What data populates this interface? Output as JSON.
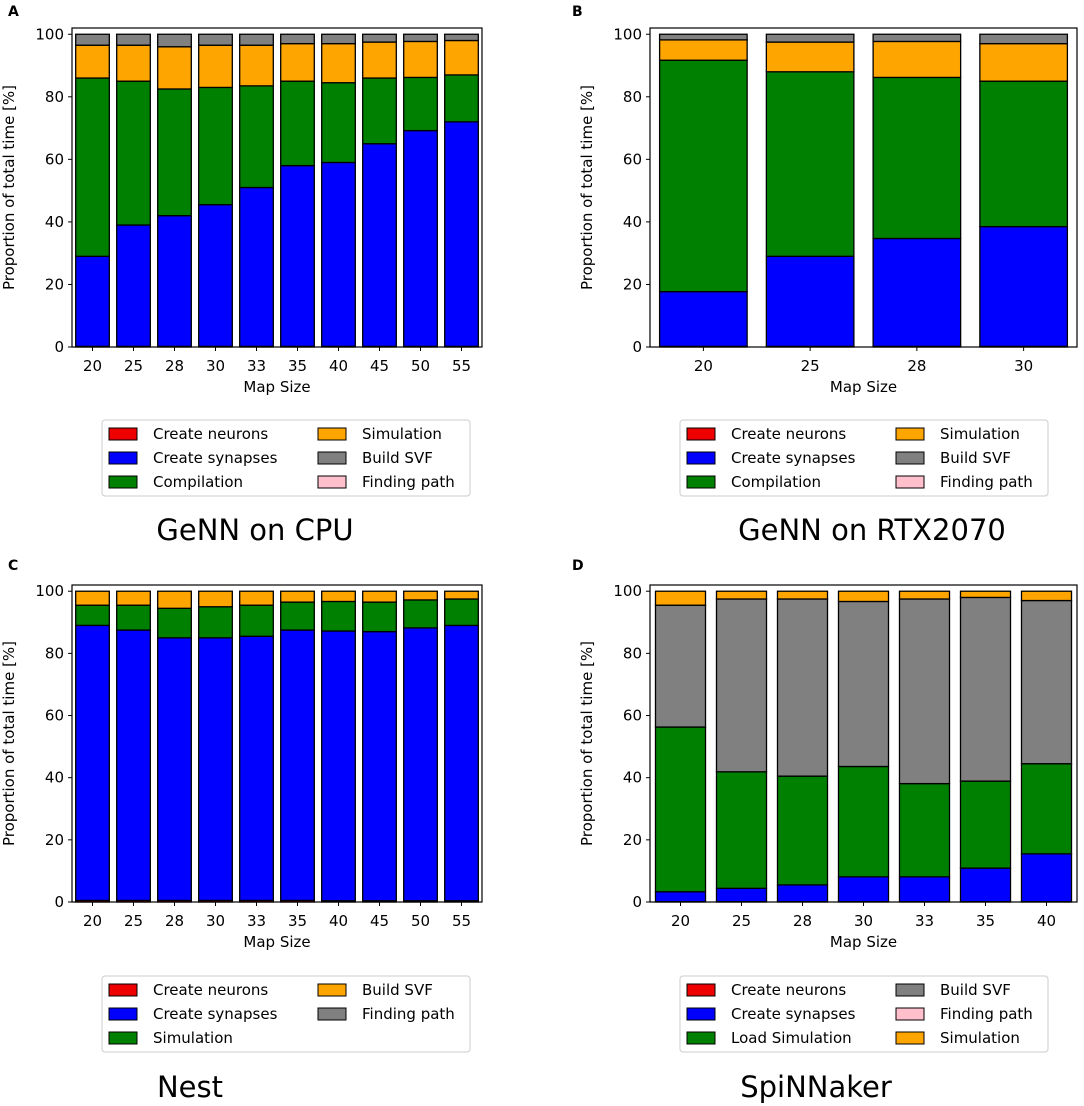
{
  "chart_data": [
    {
      "panel": "A",
      "type": "bar",
      "stacked": true,
      "caption": "GeNN on CPU",
      "xlabel": "Map Size",
      "ylabel": "Proportion of total time [%]",
      "ylim": [
        0,
        102
      ],
      "yticks": [
        "0",
        "20",
        "40",
        "60",
        "80",
        "100"
      ],
      "categories": [
        "20",
        "25",
        "28",
        "30",
        "33",
        "35",
        "40",
        "45",
        "50",
        "55"
      ],
      "series": [
        {
          "name": "Create neurons",
          "color": "#ee0000",
          "values": [
            0.2,
            0.2,
            0.2,
            0.2,
            0.2,
            0.2,
            0.2,
            0.2,
            0.2,
            0.2
          ]
        },
        {
          "name": "Create synapses",
          "color": "#0000ff",
          "values": [
            28.8,
            38.8,
            41.8,
            45.3,
            50.8,
            57.8,
            58.8,
            64.8,
            69.0,
            71.8
          ]
        },
        {
          "name": "Compilation",
          "color": "#008000",
          "values": [
            57.0,
            46.0,
            40.5,
            37.5,
            32.5,
            27.0,
            25.5,
            21.0,
            17.0,
            15.0
          ]
        },
        {
          "name": "Simulation",
          "color": "#ffa500",
          "values": [
            10.5,
            11.5,
            13.5,
            13.5,
            13.0,
            12.0,
            12.5,
            11.5,
            11.5,
            11.0
          ]
        },
        {
          "name": "Build SVF",
          "color": "#808080",
          "values": [
            3.5,
            3.5,
            4.0,
            3.5,
            3.5,
            3.0,
            3.0,
            2.5,
            2.3,
            2.0
          ]
        },
        {
          "name": "Finding path",
          "color": "#ffc0cb",
          "values": [
            0,
            0,
            0,
            0,
            0,
            0,
            0,
            0,
            0,
            0
          ]
        }
      ],
      "legend_order": [
        "Create neurons",
        "Create synapses",
        "Compilation",
        "Simulation",
        "Build SVF",
        "Finding path"
      ],
      "legend_location": "below"
    },
    {
      "panel": "B",
      "type": "bar",
      "stacked": true,
      "caption": "GeNN on RTX2070",
      "xlabel": "Map Size",
      "ylabel": "Proportion of total time [%]",
      "ylim": [
        0,
        102
      ],
      "yticks": [
        "0",
        "20",
        "40",
        "60",
        "80",
        "100"
      ],
      "categories": [
        "20",
        "25",
        "28",
        "30"
      ],
      "series": [
        {
          "name": "Create neurons",
          "color": "#ee0000",
          "values": [
            0.2,
            0.2,
            0.2,
            0.2
          ]
        },
        {
          "name": "Create synapses",
          "color": "#0000ff",
          "values": [
            17.5,
            28.8,
            34.5,
            38.3
          ]
        },
        {
          "name": "Compilation",
          "color": "#008000",
          "values": [
            74.0,
            59.0,
            51.5,
            46.5
          ]
        },
        {
          "name": "Simulation",
          "color": "#ffa500",
          "values": [
            6.5,
            9.5,
            11.5,
            12.0
          ]
        },
        {
          "name": "Build SVF",
          "color": "#808080",
          "values": [
            1.8,
            2.5,
            2.3,
            3.0
          ]
        },
        {
          "name": "Finding path",
          "color": "#ffc0cb",
          "values": [
            0,
            0,
            0,
            0
          ]
        }
      ],
      "legend_order": [
        "Create neurons",
        "Create synapses",
        "Compilation",
        "Simulation",
        "Build SVF",
        "Finding path"
      ],
      "legend_location": "below"
    },
    {
      "panel": "C",
      "type": "bar",
      "stacked": true,
      "caption": "Nest",
      "xlabel": "Map Size",
      "ylabel": "Proportion of total time [%]",
      "ylim": [
        0,
        102
      ],
      "yticks": [
        "0",
        "20",
        "40",
        "60",
        "80",
        "100"
      ],
      "categories": [
        "20",
        "25",
        "28",
        "30",
        "33",
        "35",
        "40",
        "45",
        "50",
        "55"
      ],
      "series": [
        {
          "name": "Create neurons",
          "color": "#ee0000",
          "values": [
            0.5,
            0.5,
            0.5,
            0.5,
            0.5,
            0.5,
            0.4,
            0.4,
            0.4,
            0.4
          ]
        },
        {
          "name": "Create synapses",
          "color": "#0000ff",
          "values": [
            88.5,
            87.0,
            84.5,
            84.5,
            85.0,
            87.0,
            86.8,
            86.6,
            87.8,
            88.6
          ]
        },
        {
          "name": "Simulation",
          "color": "#008000",
          "values": [
            6.5,
            8.0,
            9.5,
            10.0,
            10.0,
            9.0,
            9.5,
            9.5,
            9.0,
            8.5
          ]
        },
        {
          "name": "Build SVF",
          "color": "#ffa500",
          "values": [
            4.5,
            4.5,
            5.5,
            5.0,
            4.5,
            3.5,
            3.3,
            3.5,
            2.8,
            2.5
          ]
        },
        {
          "name": "Finding path",
          "color": "#808080",
          "values": [
            0,
            0,
            0,
            0,
            0,
            0,
            0,
            0,
            0,
            0
          ]
        }
      ],
      "legend_order": [
        "Create neurons",
        "Create synapses",
        "Simulation",
        "Build SVF",
        "Finding path"
      ],
      "legend_location": "below"
    },
    {
      "panel": "D",
      "type": "bar",
      "stacked": true,
      "caption": "SpiNNaker",
      "xlabel": "Map Size",
      "ylabel": "Proportion of total time [%]",
      "ylim": [
        0,
        102
      ],
      "yticks": [
        "0",
        "20",
        "40",
        "60",
        "80",
        "100"
      ],
      "categories": [
        "20",
        "25",
        "28",
        "30",
        "33",
        "35",
        "40"
      ],
      "series": [
        {
          "name": "Create neurons",
          "color": "#ee0000",
          "values": [
            0.1,
            0.1,
            0.1,
            0.1,
            0.1,
            0.1,
            0.1
          ]
        },
        {
          "name": "Create synapses",
          "color": "#0000ff",
          "values": [
            3.2,
            4.3,
            5.4,
            8.0,
            8.0,
            10.8,
            15.4
          ]
        },
        {
          "name": "Load Simulation",
          "color": "#008000",
          "values": [
            53.0,
            37.5,
            35.0,
            35.5,
            30.0,
            28.0,
            29.0
          ]
        },
        {
          "name": "Build SVF",
          "color": "#808080",
          "values": [
            39.2,
            55.6,
            57.0,
            53.1,
            59.4,
            59.1,
            52.5
          ]
        },
        {
          "name": "Finding path",
          "color": "#ffc0cb",
          "values": [
            0,
            0,
            0,
            0,
            0,
            0,
            0
          ]
        },
        {
          "name": "Simulation",
          "color": "#ffa500",
          "values": [
            4.5,
            2.5,
            2.5,
            3.3,
            2.5,
            2.0,
            3.0
          ]
        }
      ],
      "legend_order": [
        "Create neurons",
        "Create synapses",
        "Load Simulation",
        "Build SVF",
        "Finding path",
        "Simulation"
      ],
      "legend_location": "below"
    }
  ]
}
